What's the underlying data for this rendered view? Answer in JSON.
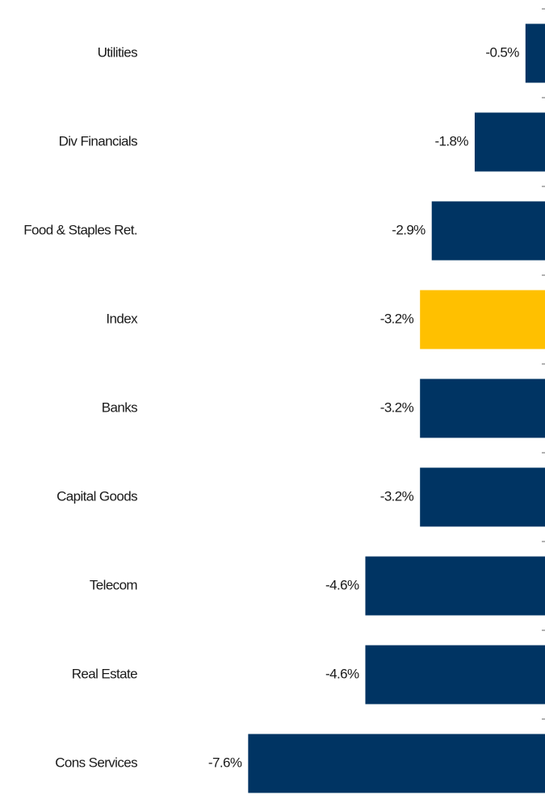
{
  "chart_data": {
    "type": "barh",
    "categories": [
      "Utilities",
      "Div Financials",
      "Food & Staples Ret.",
      "Index",
      "Banks",
      "Capital Goods",
      "Telecom",
      "Real Estate",
      "Cons Services"
    ],
    "values": [
      -0.5,
      -1.8,
      -2.9,
      -3.2,
      -3.2,
      -3.2,
      -4.6,
      -4.6,
      -7.6
    ],
    "value_labels": [
      "-0.5%",
      "-1.8%",
      "-2.9%",
      "-3.2%",
      "-3.2%",
      "-3.2%",
      "-4.6%",
      "-4.6%",
      "-7.6%"
    ],
    "colors": [
      "#003463",
      "#003463",
      "#003463",
      "#ffc000",
      "#003463",
      "#003463",
      "#003463",
      "#003463",
      "#003463"
    ],
    "xlim": [
      -8,
      0
    ]
  }
}
